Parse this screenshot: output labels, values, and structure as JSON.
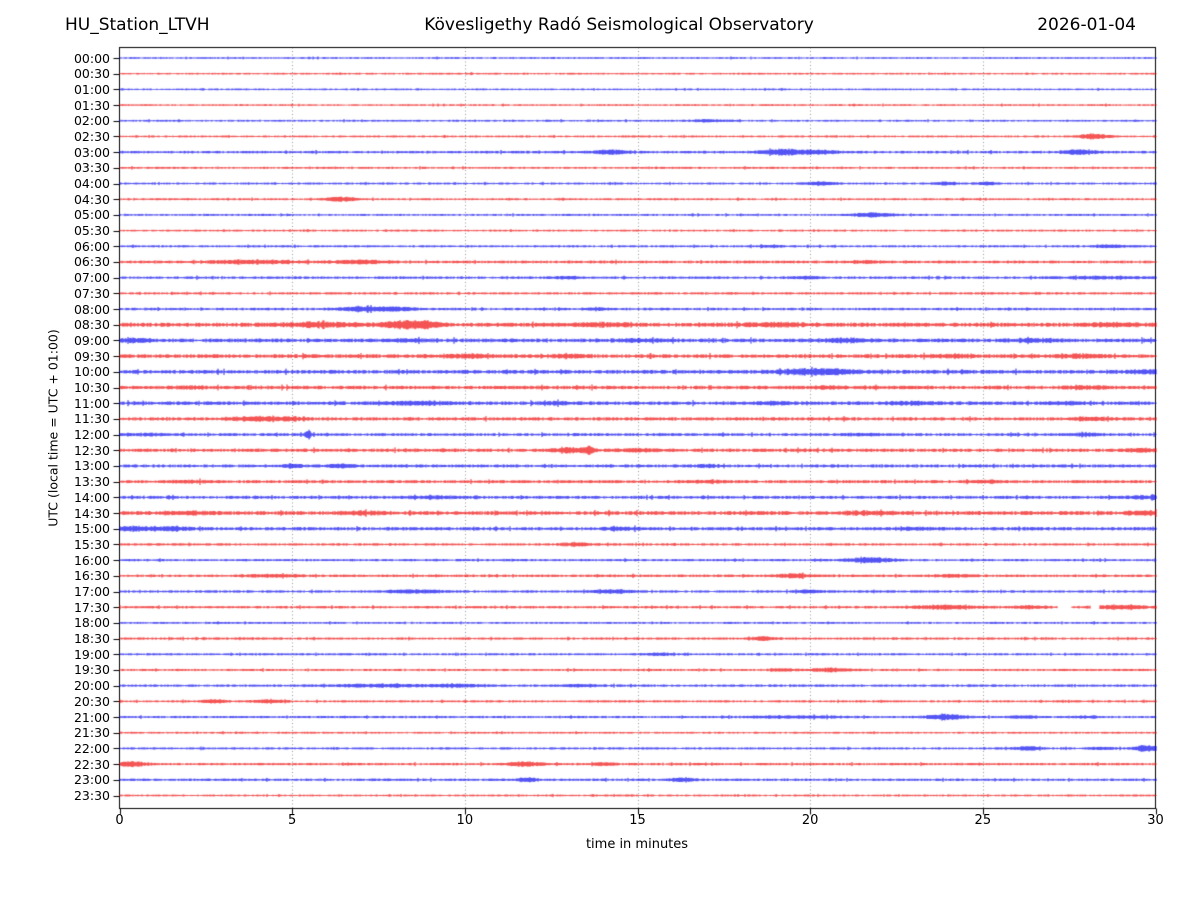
{
  "header": {
    "station": "HU_Station_LTVH",
    "observatory": "Kövesligethy Radó Seismological Observatory",
    "date": "2026-01-04"
  },
  "chart_data": {
    "type": "line",
    "subtype": "helicorder-daily-seismogram",
    "title": "Kövesligethy Radó Seismological Observatory",
    "xlabel": "time in minutes",
    "ylabel": "UTC (local time = UTC + 01:00)",
    "xlim": [
      0,
      30
    ],
    "x_ticks": [
      0,
      5,
      10,
      15,
      20,
      25,
      30
    ],
    "grid": "vertical dotted lines every 5 minutes",
    "minutes_per_row": 30,
    "palette": {
      "blue": "#0000ee",
      "red": "#ee0000",
      "frame": "#000000",
      "grid": "#999999"
    },
    "rows": [
      {
        "label": "00:00",
        "color": "blue",
        "noise": 0.7,
        "events": []
      },
      {
        "label": "00:30",
        "color": "red",
        "noise": 0.7,
        "events": []
      },
      {
        "label": "01:00",
        "color": "blue",
        "noise": 0.7,
        "events": []
      },
      {
        "label": "01:30",
        "color": "red",
        "noise": 0.7,
        "events": []
      },
      {
        "label": "02:00",
        "color": "blue",
        "noise": 0.75,
        "events": [
          [
            17,
            0.6,
            0.9
          ]
        ]
      },
      {
        "label": "02:30",
        "color": "red",
        "noise": 0.75,
        "events": [
          [
            28.2,
            0.5,
            2.2
          ]
        ]
      },
      {
        "label": "03:00",
        "color": "blue",
        "noise": 1.0,
        "events": [
          [
            14.2,
            0.5,
            1.8
          ],
          [
            19.2,
            0.6,
            2.8
          ],
          [
            20.3,
            0.5,
            1.6
          ],
          [
            27.8,
            0.5,
            2.2
          ]
        ]
      },
      {
        "label": "03:30",
        "color": "red",
        "noise": 0.8,
        "events": []
      },
      {
        "label": "04:00",
        "color": "blue",
        "noise": 0.8,
        "events": [
          [
            20.3,
            0.4,
            1.5
          ],
          [
            23.9,
            0.3,
            1.2
          ],
          [
            25.1,
            0.3,
            1.4
          ]
        ]
      },
      {
        "label": "04:30",
        "color": "red",
        "noise": 0.8,
        "events": [
          [
            6.4,
            0.45,
            1.9
          ]
        ]
      },
      {
        "label": "05:00",
        "color": "blue",
        "noise": 0.8,
        "events": [
          [
            21.8,
            0.55,
            1.9
          ]
        ]
      },
      {
        "label": "05:30",
        "color": "red",
        "noise": 0.75,
        "events": []
      },
      {
        "label": "06:00",
        "color": "blue",
        "noise": 0.85,
        "events": [
          [
            18.8,
            0.4,
            0.9
          ],
          [
            28.7,
            0.5,
            1.2
          ]
        ]
      },
      {
        "label": "06:30",
        "color": "red",
        "noise": 1.1,
        "events": [
          [
            3.8,
            1.3,
            1.5
          ],
          [
            7.0,
            0.8,
            1.3
          ],
          [
            21.5,
            0.4,
            0.9
          ]
        ]
      },
      {
        "label": "07:00",
        "color": "blue",
        "noise": 1.0,
        "events": [
          [
            13,
            0.4,
            1.0
          ],
          [
            19.8,
            0.4,
            0.9
          ],
          [
            28.5,
            1.2,
            0.9
          ]
        ]
      },
      {
        "label": "07:30",
        "color": "red",
        "noise": 0.9,
        "events": []
      },
      {
        "label": "08:00",
        "color": "blue",
        "noise": 1.0,
        "events": [
          [
            7.1,
            0.7,
            2.2
          ],
          [
            8.1,
            0.5,
            1.4
          ],
          [
            13.8,
            0.3,
            1.1
          ]
        ]
      },
      {
        "label": "08:30",
        "color": "red",
        "noise": 1.6,
        "events": [
          [
            5.8,
            1.2,
            1.6
          ],
          [
            8.3,
            0.6,
            3.2
          ],
          [
            9.0,
            0.4,
            1.8
          ],
          [
            14,
            0.8,
            1.2
          ],
          [
            19,
            1.2,
            1.0
          ],
          [
            28.8,
            0.8,
            1.2
          ]
        ]
      },
      {
        "label": "09:00",
        "color": "blue",
        "noise": 1.5,
        "events": [
          [
            0.4,
            0.4,
            1.2
          ],
          [
            8.3,
            0.5,
            0.9
          ],
          [
            15,
            0.6,
            0.9
          ],
          [
            21,
            0.7,
            1.3
          ],
          [
            26.5,
            0.6,
            1.0
          ]
        ]
      },
      {
        "label": "09:30",
        "color": "red",
        "noise": 1.5,
        "events": [
          [
            10,
            0.8,
            1.1
          ],
          [
            13,
            0.6,
            1.0
          ],
          [
            24,
            0.7,
            1.0
          ],
          [
            27.9,
            0.6,
            1.2
          ]
        ]
      },
      {
        "label": "10:00",
        "color": "blue",
        "noise": 1.5,
        "events": [
          [
            20,
            0.9,
            2.2
          ],
          [
            21,
            0.5,
            1.2
          ],
          [
            29.7,
            0.4,
            1.5
          ]
        ]
      },
      {
        "label": "10:30",
        "color": "red",
        "noise": 1.4,
        "events": [
          [
            2,
            0.5,
            0.9
          ],
          [
            20.5,
            0.6,
            0.8
          ],
          [
            28,
            0.6,
            1.1
          ]
        ]
      },
      {
        "label": "11:00",
        "color": "blue",
        "noise": 1.4,
        "events": [
          [
            8.6,
            0.8,
            1.5
          ],
          [
            12.6,
            0.5,
            1.0
          ],
          [
            19,
            0.6,
            0.9
          ],
          [
            23,
            0.7,
            1.1
          ],
          [
            27.4,
            0.5,
            1.0
          ]
        ]
      },
      {
        "label": "11:30",
        "color": "red",
        "noise": 1.3,
        "events": [
          [
            4,
            0.8,
            1.7
          ],
          [
            5,
            0.4,
            1.0
          ],
          [
            28.2,
            0.5,
            1.1
          ]
        ]
      },
      {
        "label": "12:00",
        "color": "blue",
        "noise": 1.1,
        "events": [
          [
            0.8,
            0.5,
            1.0
          ],
          [
            5.45,
            0.08,
            4.5
          ],
          [
            21.5,
            0.5,
            0.9
          ],
          [
            28,
            0.5,
            1.0
          ]
        ]
      },
      {
        "label": "12:30",
        "color": "red",
        "noise": 1.3,
        "events": [
          [
            13.1,
            0.55,
            1.9
          ],
          [
            13.6,
            0.12,
            3.0
          ],
          [
            15,
            0.5,
            1.3
          ],
          [
            29.6,
            0.4,
            1.4
          ]
        ]
      },
      {
        "label": "13:00",
        "color": "blue",
        "noise": 1.2,
        "events": [
          [
            5.0,
            0.3,
            1.7
          ],
          [
            6.4,
            0.4,
            1.2
          ],
          [
            17,
            0.4,
            0.9
          ]
        ]
      },
      {
        "label": "13:30",
        "color": "red",
        "noise": 1.2,
        "events": [
          [
            2,
            0.6,
            0.8
          ],
          [
            17,
            0.6,
            0.8
          ],
          [
            25,
            0.5,
            0.8
          ]
        ]
      },
      {
        "label": "14:00",
        "color": "blue",
        "noise": 1.2,
        "events": [
          [
            9,
            0.8,
            0.8
          ],
          [
            29.7,
            0.4,
            1.2
          ]
        ]
      },
      {
        "label": "14:30",
        "color": "red",
        "noise": 1.5,
        "events": [
          [
            2,
            0.6,
            1.0
          ],
          [
            7,
            0.7,
            1.1
          ],
          [
            21.5,
            0.6,
            1.2
          ],
          [
            29.6,
            0.5,
            1.3
          ]
        ]
      },
      {
        "label": "15:00",
        "color": "blue",
        "noise": 1.3,
        "events": [
          [
            0.4,
            0.5,
            1.8
          ],
          [
            1.5,
            0.5,
            1.4
          ],
          [
            14.5,
            0.5,
            1.0
          ],
          [
            23,
            0.5,
            0.8
          ]
        ]
      },
      {
        "label": "15:30",
        "color": "red",
        "noise": 0.9,
        "events": [
          [
            13.2,
            0.5,
            1.4
          ]
        ]
      },
      {
        "label": "16:00",
        "color": "blue",
        "noise": 0.9,
        "events": [
          [
            21.7,
            0.7,
            2.2
          ]
        ]
      },
      {
        "label": "16:30",
        "color": "red",
        "noise": 1.0,
        "events": [
          [
            4.5,
            0.7,
            1.2
          ],
          [
            19.5,
            0.45,
            1.8
          ],
          [
            24.2,
            0.5,
            1.1
          ]
        ]
      },
      {
        "label": "17:00",
        "color": "blue",
        "noise": 0.95,
        "events": [
          [
            8.6,
            0.9,
            1.3
          ],
          [
            14.3,
            0.6,
            1.6
          ],
          [
            20,
            0.5,
            0.9
          ]
        ]
      },
      {
        "label": "17:30",
        "color": "red",
        "noise": 0.95,
        "events": [
          [
            23.9,
            1.0,
            1.5
          ],
          [
            26.3,
            0.5,
            1.2
          ],
          [
            29,
            0.8,
            1.6
          ]
        ],
        "gaps": [
          [
            27.15,
            27.55
          ],
          [
            28.1,
            28.35
          ]
        ]
      },
      {
        "label": "18:00",
        "color": "blue",
        "noise": 0.8,
        "events": []
      },
      {
        "label": "18:30",
        "color": "red",
        "noise": 0.9,
        "events": [
          [
            18.6,
            0.4,
            1.5
          ]
        ]
      },
      {
        "label": "19:00",
        "color": "blue",
        "noise": 0.85,
        "events": [
          [
            15.6,
            0.4,
            1.1
          ]
        ]
      },
      {
        "label": "19:30",
        "color": "red",
        "noise": 0.85,
        "events": [
          [
            19.2,
            0.4,
            0.9
          ],
          [
            20.6,
            0.6,
            1.7
          ]
        ]
      },
      {
        "label": "20:00",
        "color": "blue",
        "noise": 0.95,
        "events": [
          [
            7.5,
            1.3,
            1.2
          ],
          [
            9.8,
            0.7,
            1.1
          ],
          [
            13.4,
            0.5,
            1.0
          ]
        ]
      },
      {
        "label": "20:30",
        "color": "red",
        "noise": 0.85,
        "events": [
          [
            2.7,
            0.4,
            1.4
          ],
          [
            4.3,
            0.5,
            1.1
          ]
        ]
      },
      {
        "label": "21:00",
        "color": "blue",
        "noise": 0.9,
        "events": [
          [
            19.5,
            1.5,
            0.9
          ],
          [
            23.9,
            0.6,
            2.2
          ],
          [
            26.2,
            0.4,
            1.0
          ],
          [
            28,
            0.4,
            0.9
          ]
        ]
      },
      {
        "label": "21:30",
        "color": "red",
        "noise": 0.75,
        "events": []
      },
      {
        "label": "22:00",
        "color": "blue",
        "noise": 0.85,
        "events": [
          [
            26.3,
            0.4,
            1.6
          ],
          [
            28.4,
            0.4,
            1.0
          ],
          [
            29.7,
            0.35,
            3.0
          ]
        ]
      },
      {
        "label": "22:30",
        "color": "red",
        "noise": 0.95,
        "events": [
          [
            0.3,
            0.45,
            2.4
          ],
          [
            11.7,
            0.5,
            2.0
          ],
          [
            14,
            0.4,
            1.0
          ]
        ]
      },
      {
        "label": "23:00",
        "color": "blue",
        "noise": 0.95,
        "events": [
          [
            11.8,
            0.35,
            1.5
          ],
          [
            16.3,
            0.4,
            1.7
          ]
        ]
      },
      {
        "label": "23:30",
        "color": "red",
        "noise": 0.75,
        "events": []
      }
    ]
  }
}
